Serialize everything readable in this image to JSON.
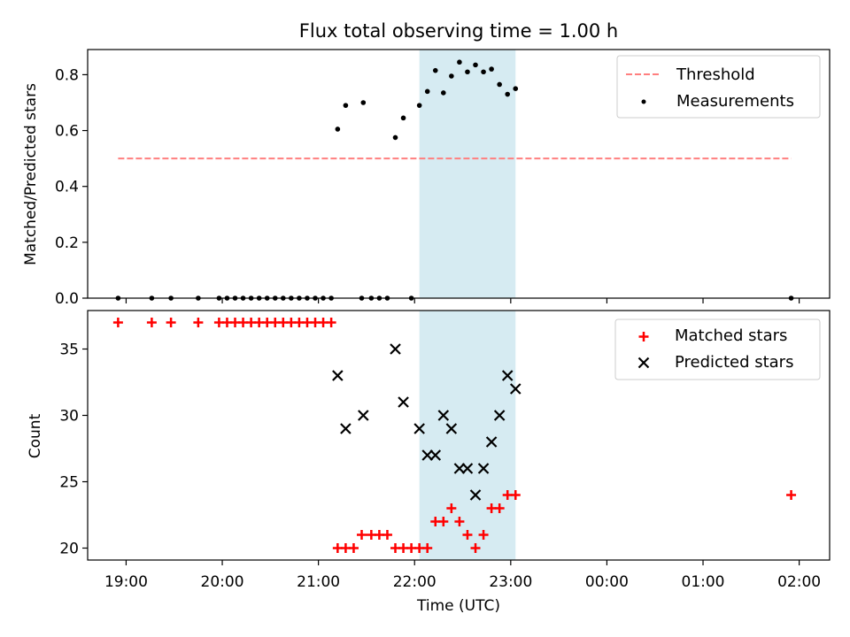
{
  "chart_data": [
    {
      "type": "scatter",
      "title": "Flux total observing time = 1.00 h",
      "xlabel": "",
      "ylabel": "Matched/Predicted stars",
      "xlim": [
        "18:36",
        "02:19"
      ],
      "ylim": [
        0,
        0.89
      ],
      "yticks": [
        0.0,
        0.2,
        0.4,
        0.6,
        0.8
      ],
      "highlight_span": [
        "22:03",
        "23:03"
      ],
      "highlight_color": "#add8e6",
      "legend_position": "top-right",
      "series": [
        {
          "name": "Threshold",
          "style": "dashed-line",
          "color": "#ff7f7f",
          "points": [
            [
              "18:55",
              0.5
            ],
            [
              "01:55",
              0.5
            ]
          ]
        },
        {
          "name": "Measurements",
          "style": "dot",
          "color": "#000000",
          "points": [
            [
              "18:55",
              0.0
            ],
            [
              "19:16",
              0.0
            ],
            [
              "19:28",
              0.0
            ],
            [
              "19:45",
              0.0
            ],
            [
              "19:58",
              0.0
            ],
            [
              "20:03",
              0.0
            ],
            [
              "20:08",
              0.0
            ],
            [
              "20:13",
              0.0
            ],
            [
              "20:18",
              0.0
            ],
            [
              "20:23",
              0.0
            ],
            [
              "20:28",
              0.0
            ],
            [
              "20:33",
              0.0
            ],
            [
              "20:38",
              0.0
            ],
            [
              "20:43",
              0.0
            ],
            [
              "20:48",
              0.0
            ],
            [
              "20:53",
              0.0
            ],
            [
              "20:58",
              0.0
            ],
            [
              "21:03",
              0.0
            ],
            [
              "21:08",
              0.0
            ],
            [
              "21:12",
              0.605
            ],
            [
              "21:17",
              0.69
            ],
            [
              "21:27",
              0.0
            ],
            [
              "21:28",
              0.7
            ],
            [
              "21:33",
              0.0
            ],
            [
              "21:38",
              0.0
            ],
            [
              "21:43",
              0.0
            ],
            [
              "21:48",
              0.575
            ],
            [
              "21:53",
              0.645
            ],
            [
              "21:58",
              0.0
            ],
            [
              "22:03",
              0.69
            ],
            [
              "22:08",
              0.74
            ],
            [
              "22:13",
              0.815
            ],
            [
              "22:18",
              0.735
            ],
            [
              "22:23",
              0.795
            ],
            [
              "22:28",
              0.845
            ],
            [
              "22:33",
              0.81
            ],
            [
              "22:38",
              0.835
            ],
            [
              "22:43",
              0.81
            ],
            [
              "22:48",
              0.82
            ],
            [
              "22:53",
              0.765
            ],
            [
              "22:58",
              0.73
            ],
            [
              "23:03",
              0.75
            ],
            [
              "01:55",
              0.0
            ]
          ]
        }
      ]
    },
    {
      "type": "scatter",
      "title": "",
      "xlabel": "Time (UTC)",
      "ylabel": "Count",
      "xlim": [
        "18:36",
        "02:19"
      ],
      "ylim": [
        19.1,
        37.9
      ],
      "yticks": [
        20,
        25,
        30,
        35
      ],
      "xticks": [
        "19:00",
        "20:00",
        "21:00",
        "22:00",
        "23:00",
        "00:00",
        "01:00",
        "02:00"
      ],
      "highlight_span": [
        "22:03",
        "23:03"
      ],
      "highlight_color": "#add8e6",
      "legend_position": "top-right",
      "series": [
        {
          "name": "Matched stars",
          "style": "plus",
          "color": "#ff0000",
          "points": [
            [
              "18:55",
              37
            ],
            [
              "19:16",
              37
            ],
            [
              "19:28",
              37
            ],
            [
              "19:45",
              37
            ],
            [
              "19:58",
              37
            ],
            [
              "20:03",
              37
            ],
            [
              "20:08",
              37
            ],
            [
              "20:13",
              37
            ],
            [
              "20:18",
              37
            ],
            [
              "20:23",
              37
            ],
            [
              "20:28",
              37
            ],
            [
              "20:33",
              37
            ],
            [
              "20:38",
              37
            ],
            [
              "20:43",
              37
            ],
            [
              "20:48",
              37
            ],
            [
              "20:53",
              37
            ],
            [
              "20:58",
              37
            ],
            [
              "21:03",
              37
            ],
            [
              "21:08",
              37
            ],
            [
              "21:12",
              20
            ],
            [
              "21:17",
              20
            ],
            [
              "21:22",
              20
            ],
            [
              "21:27",
              21
            ],
            [
              "21:33",
              21
            ],
            [
              "21:38",
              21
            ],
            [
              "21:43",
              21
            ],
            [
              "21:48",
              20
            ],
            [
              "21:53",
              20
            ],
            [
              "21:58",
              20
            ],
            [
              "22:03",
              20
            ],
            [
              "22:08",
              20
            ],
            [
              "22:13",
              22
            ],
            [
              "22:18",
              22
            ],
            [
              "22:23",
              23
            ],
            [
              "22:28",
              22
            ],
            [
              "22:33",
              21
            ],
            [
              "22:38",
              20
            ],
            [
              "22:43",
              21
            ],
            [
              "22:48",
              23
            ],
            [
              "22:53",
              23
            ],
            [
              "22:58",
              24
            ],
            [
              "23:03",
              24
            ],
            [
              "01:55",
              24
            ]
          ]
        },
        {
          "name": "Predicted stars",
          "style": "x",
          "color": "#000000",
          "points": [
            [
              "21:12",
              33
            ],
            [
              "21:17",
              29
            ],
            [
              "21:28",
              30
            ],
            [
              "21:48",
              35
            ],
            [
              "21:53",
              31
            ],
            [
              "22:03",
              29
            ],
            [
              "22:08",
              27
            ],
            [
              "22:13",
              27
            ],
            [
              "22:18",
              30
            ],
            [
              "22:23",
              29
            ],
            [
              "22:28",
              26
            ],
            [
              "22:33",
              26
            ],
            [
              "22:38",
              24
            ],
            [
              "22:43",
              26
            ],
            [
              "22:48",
              28
            ],
            [
              "22:53",
              30
            ],
            [
              "22:58",
              33
            ],
            [
              "23:03",
              32
            ]
          ]
        }
      ]
    }
  ]
}
